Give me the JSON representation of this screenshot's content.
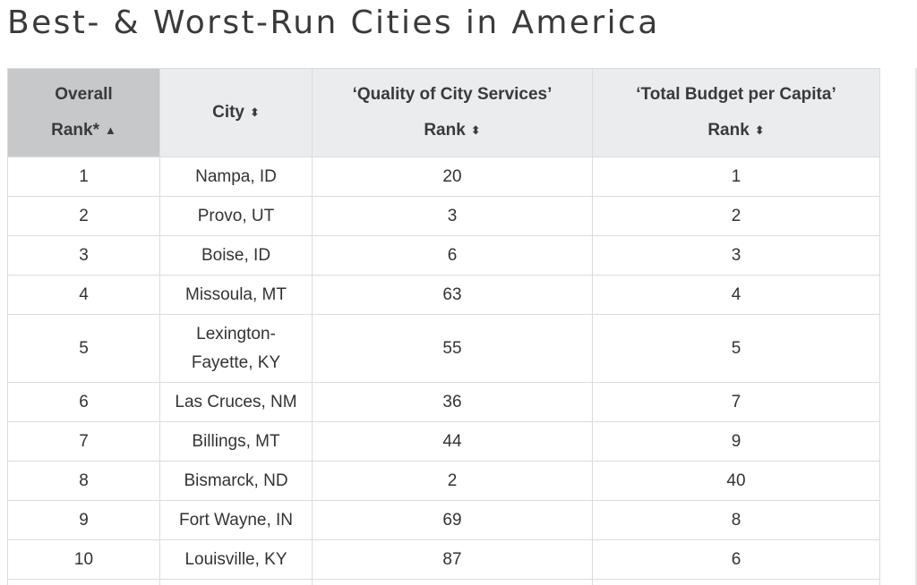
{
  "page": {
    "title": "Best- & Worst-Run Cities in America"
  },
  "table": {
    "headers": [
      {
        "line1": "Overall",
        "line2": "Rank*",
        "sort_icon": "sort-asc-icon",
        "sort_glyph": "▲"
      },
      {
        "line1": "",
        "line2": "City",
        "sort_icon": "sort-both-icon",
        "sort_glyph": "⬍"
      },
      {
        "line1": "‘Quality of City Services’",
        "line2": "Rank",
        "sort_icon": "sort-both-icon",
        "sort_glyph": "⬍"
      },
      {
        "line1": "‘Total Budget per Capita’",
        "line2": "Rank",
        "sort_icon": "sort-both-icon",
        "sort_glyph": "⬍"
      }
    ],
    "rows": [
      {
        "rank": "1",
        "city": "Nampa, ID",
        "services": "20",
        "budget": "1"
      },
      {
        "rank": "2",
        "city": "Provo, UT",
        "services": "3",
        "budget": "2"
      },
      {
        "rank": "3",
        "city": "Boise, ID",
        "services": "6",
        "budget": "3"
      },
      {
        "rank": "4",
        "city": "Missoula, MT",
        "services": "63",
        "budget": "4"
      },
      {
        "rank": "5",
        "city": "Lexington-Fayette, KY",
        "services": "55",
        "budget": "5"
      },
      {
        "rank": "6",
        "city": "Las Cruces, NM",
        "services": "36",
        "budget": "7"
      },
      {
        "rank": "7",
        "city": "Billings, MT",
        "services": "44",
        "budget": "9"
      },
      {
        "rank": "8",
        "city": "Bismarck, ND",
        "services": "2",
        "budget": "40"
      },
      {
        "rank": "9",
        "city": "Fort Wayne, IN",
        "services": "69",
        "budget": "8"
      },
      {
        "rank": "10",
        "city": "Louisville, KY",
        "services": "87",
        "budget": "6"
      }
    ]
  },
  "colors": {
    "header_bg": "#eaecee",
    "sorted_header_bg": "#c7c8c9",
    "border": "#dcdcdc",
    "text": "#333333"
  }
}
